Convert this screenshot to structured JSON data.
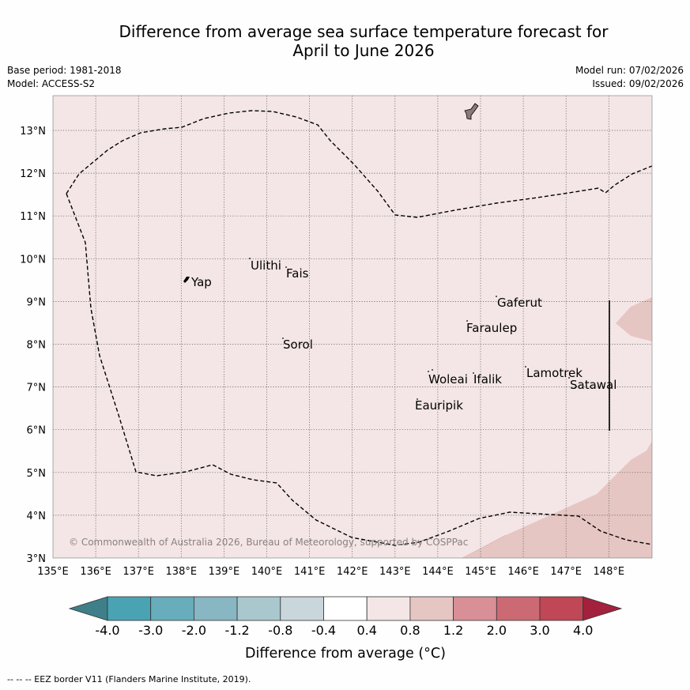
{
  "title": {
    "line1": "Difference from average sea surface temperature forecast for",
    "line2": "April to June 2026"
  },
  "meta": {
    "base_period": "Base period: 1981-2018",
    "model": "Model: ACCESS-S2",
    "model_run": "Model run: 07/02/2026",
    "issued": "Issued: 09/02/2026"
  },
  "map": {
    "lon_labels": [
      "135°E",
      "136°E",
      "137°E",
      "138°E",
      "139°E",
      "140°E",
      "141°E",
      "142°E",
      "143°E",
      "144°E",
      "145°E",
      "146°E",
      "147°E",
      "148°E"
    ],
    "lat_labels": [
      "3°N",
      "4°N",
      "5°N",
      "6°N",
      "7°N",
      "8°N",
      "9°N",
      "10°N",
      "11°N",
      "12°N",
      "13°N"
    ],
    "places": {
      "yap": "Yap",
      "ulithi": "Ulithi",
      "fais": "Fais",
      "gaferut": "Gaferut",
      "faraulep": "Faraulep",
      "sorol": "Sorol",
      "woleai": "Woleai",
      "ifalik": "Ifalik",
      "lamotrek": "Lamotrek",
      "satawal": "Satawal",
      "eauripik": "Eauripik"
    },
    "copyright": "© Commonwealth of Australia 2026, Bureau of Meteorology, supported by COSPPac",
    "colors": {
      "background_anomaly": "#f4e6e6",
      "warm_patch": "#e6c6c3",
      "grid": "#555555",
      "eez_line": "#000000"
    }
  },
  "colorbar": {
    "labels": [
      "-4.0",
      "-3.0",
      "-2.0",
      "-1.2",
      "-0.8",
      "-0.4",
      "0.4",
      "0.8",
      "1.2",
      "2.0",
      "3.0",
      "4.0"
    ],
    "colors": [
      "#3f7f8a",
      "#4aa3b3",
      "#67adbb",
      "#88b6c2",
      "#a9c8ce",
      "#c9d6db",
      "#ffffff",
      "#f4e6e6",
      "#e6c6c3",
      "#d98f96",
      "#cc6a74",
      "#c04755",
      "#a3213d"
    ],
    "title": "Difference from average (°C)"
  },
  "footer": "--  --  -- EEZ border V11 (Flanders Marine Institute, 2019)."
}
